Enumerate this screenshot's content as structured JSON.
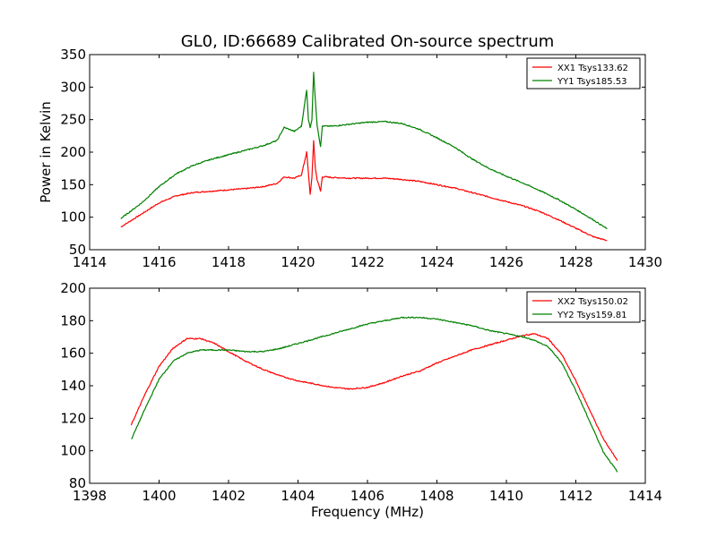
{
  "figure": {
    "title": "GL0, ID:66689 Calibrated On-source spectrum"
  },
  "colors": {
    "xx": "#ff0000",
    "yy": "#008000",
    "axes": "#000000",
    "background": "#ffffff"
  },
  "chart_data": [
    {
      "type": "line",
      "title": "GL0, ID:66689 Calibrated On-source spectrum",
      "xlabel": "",
      "ylabel": "Power in Kelvin",
      "xlim": [
        1414,
        1430
      ],
      "ylim": [
        50,
        350
      ],
      "xticks": [
        1414,
        1416,
        1418,
        1420,
        1422,
        1424,
        1426,
        1428,
        1430
      ],
      "yticks": [
        50,
        100,
        150,
        200,
        250,
        300,
        350
      ],
      "grid": false,
      "legend_position": "top-right",
      "series": [
        {
          "name": "XX1 Tsys133.62",
          "color": "#ff0000",
          "x": [
            1414.9,
            1415.5,
            1416.0,
            1416.5,
            1417.0,
            1417.5,
            1418.0,
            1418.5,
            1419.0,
            1419.4,
            1419.6,
            1419.9,
            1420.1,
            1420.25,
            1420.35,
            1420.4,
            1420.45,
            1420.5,
            1420.55,
            1420.65,
            1420.7,
            1420.8,
            1421.0,
            1421.5,
            1422.0,
            1422.5,
            1423.0,
            1423.5,
            1424.0,
            1424.5,
            1425.0,
            1425.5,
            1426.0,
            1426.5,
            1427.0,
            1427.5,
            1428.0,
            1428.5,
            1428.9
          ],
          "y": [
            85,
            105,
            122,
            133,
            138,
            140,
            142,
            144,
            147,
            152,
            162,
            160,
            165,
            200,
            135,
            160,
            218,
            175,
            158,
            140,
            162,
            162,
            161,
            160,
            160,
            160,
            158,
            155,
            150,
            145,
            138,
            131,
            124,
            117,
            108,
            96,
            83,
            70,
            64
          ]
        },
        {
          "name": "YY1 Tsys185.53",
          "color": "#008000",
          "x": [
            1414.9,
            1415.5,
            1416.0,
            1416.5,
            1417.0,
            1417.5,
            1418.0,
            1418.5,
            1419.0,
            1419.4,
            1419.6,
            1419.9,
            1420.1,
            1420.25,
            1420.3,
            1420.35,
            1420.4,
            1420.45,
            1420.5,
            1420.55,
            1420.65,
            1420.7,
            1420.8,
            1421.0,
            1421.5,
            1422.0,
            1422.5,
            1423.0,
            1423.5,
            1424.0,
            1424.5,
            1425.0,
            1425.5,
            1426.0,
            1426.5,
            1427.0,
            1427.5,
            1428.0,
            1428.5,
            1428.9
          ],
          "y": [
            98,
            122,
            147,
            167,
            180,
            189,
            196,
            203,
            210,
            218,
            238,
            232,
            240,
            296,
            250,
            238,
            250,
            322,
            280,
            242,
            208,
            240,
            240,
            240,
            243,
            246,
            247,
            244,
            235,
            222,
            208,
            190,
            175,
            163,
            152,
            140,
            127,
            112,
            96,
            82
          ]
        }
      ]
    },
    {
      "type": "line",
      "title": "",
      "xlabel": "Frequency (MHz)",
      "ylabel": "",
      "xlim": [
        1398,
        1414
      ],
      "ylim": [
        80,
        200
      ],
      "xticks": [
        1398,
        1400,
        1402,
        1404,
        1406,
        1408,
        1410,
        1412,
        1414
      ],
      "yticks": [
        80,
        100,
        120,
        140,
        160,
        180,
        200
      ],
      "grid": false,
      "legend_position": "top-right",
      "series": [
        {
          "name": "XX2 Tsys150.02",
          "color": "#ff0000",
          "x": [
            1399.2,
            1399.6,
            1400.0,
            1400.4,
            1400.8,
            1401.2,
            1401.6,
            1402.0,
            1402.5,
            1403.0,
            1403.5,
            1404.0,
            1404.5,
            1405.0,
            1405.5,
            1406.0,
            1406.5,
            1407.0,
            1407.5,
            1408.0,
            1408.5,
            1409.0,
            1409.5,
            1410.0,
            1410.5,
            1410.8,
            1411.2,
            1411.6,
            1412.0,
            1412.4,
            1412.8,
            1413.2
          ],
          "y": [
            116,
            135,
            152,
            163,
            169,
            169,
            166,
            161,
            155,
            150,
            146,
            143,
            141,
            139,
            138,
            139,
            142,
            146,
            149,
            154,
            158,
            162,
            165,
            168,
            171,
            172,
            169,
            159,
            143,
            125,
            107,
            94
          ]
        },
        {
          "name": "YY2 Tsys159.81",
          "color": "#008000",
          "x": [
            1399.2,
            1399.6,
            1400.0,
            1400.4,
            1400.8,
            1401.2,
            1401.6,
            1402.0,
            1402.5,
            1403.0,
            1403.5,
            1404.0,
            1404.5,
            1405.0,
            1405.5,
            1406.0,
            1406.5,
            1407.0,
            1407.5,
            1408.0,
            1408.5,
            1409.0,
            1409.5,
            1410.0,
            1410.5,
            1410.8,
            1411.2,
            1411.6,
            1412.0,
            1412.4,
            1412.8,
            1413.2
          ],
          "y": [
            107,
            126,
            144,
            155,
            160,
            162,
            162,
            162,
            161,
            161,
            163,
            166,
            169,
            172,
            175,
            178,
            180,
            182,
            182,
            181,
            179,
            177,
            174,
            172,
            170,
            168,
            164,
            154,
            137,
            118,
            99,
            87
          ]
        }
      ]
    }
  ]
}
